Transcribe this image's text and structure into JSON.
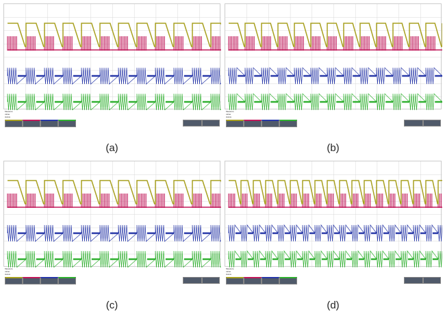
{
  "panels": [
    {
      "caption": "(a)",
      "measure_labels": [
        "Measure",
        "value",
        "status"
      ]
    },
    {
      "caption": "(b)",
      "measure_labels": [
        "Measure",
        "value",
        "status"
      ]
    },
    {
      "caption": "(c)",
      "measure_labels": [
        "Measure",
        "value",
        "status"
      ]
    },
    {
      "caption": "(d)",
      "measure_labels": [
        "Measure",
        "value",
        "status"
      ]
    }
  ],
  "colors": {
    "ch1": "#a8a020",
    "ch2": "#c0185a",
    "ch3": "#2838a8",
    "ch4": "#30b030",
    "grid": "#d8d8d8"
  }
}
